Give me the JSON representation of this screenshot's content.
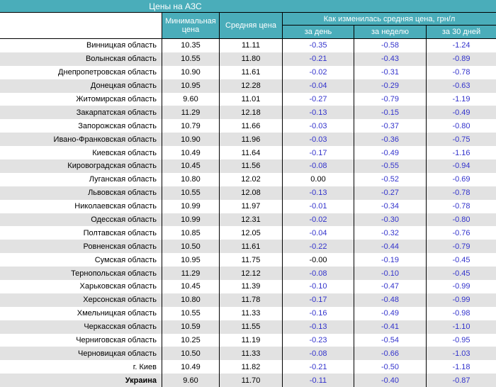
{
  "title": "Цены на АЗС",
  "header": {
    "min_price": "Минимальная цена",
    "avg_price": "Средняя цена",
    "change_group": "Как изменилась средняя цена, грн/л",
    "periods": [
      "за день",
      "за неделю",
      "за 30 дней"
    ]
  },
  "rows": [
    {
      "region": "Винницкая область",
      "min": "10.35",
      "avg": "11.11",
      "day": "-0.35",
      "week": "-0.58",
      "month": "-1.24"
    },
    {
      "region": "Волынская область",
      "min": "10.55",
      "avg": "11.80",
      "day": "-0.21",
      "week": "-0.43",
      "month": "-0.89"
    },
    {
      "region": "Днепропетровская область",
      "min": "10.90",
      "avg": "11.61",
      "day": "-0.02",
      "week": "-0.31",
      "month": "-0.78"
    },
    {
      "region": "Донецкая область",
      "min": "10.95",
      "avg": "12.28",
      "day": "-0.04",
      "week": "-0.29",
      "month": "-0.63"
    },
    {
      "region": "Житомирская область",
      "min": "9.60",
      "avg": "11.01",
      "day": "-0.27",
      "week": "-0.79",
      "month": "-1.19"
    },
    {
      "region": "Закарпатская область",
      "min": "11.29",
      "avg": "12.18",
      "day": "-0.13",
      "week": "-0.15",
      "month": "-0.49"
    },
    {
      "region": "Запорожская область",
      "min": "10.79",
      "avg": "11.66",
      "day": "-0.03",
      "week": "-0.37",
      "month": "-0.80"
    },
    {
      "region": "Ивано-Франковская область",
      "min": "10.90",
      "avg": "11.96",
      "day": "-0.03",
      "week": "-0.36",
      "month": "-0.75"
    },
    {
      "region": "Киевская область",
      "min": "10.49",
      "avg": "11.64",
      "day": "-0.17",
      "week": "-0.49",
      "month": "-1.16"
    },
    {
      "region": "Кировоградская область",
      "min": "10.45",
      "avg": "11.56",
      "day": "-0.08",
      "week": "-0.55",
      "month": "-0.94"
    },
    {
      "region": "Луганская область",
      "min": "10.80",
      "avg": "12.02",
      "day": "0.00",
      "week": "-0.52",
      "month": "-0.69"
    },
    {
      "region": "Львовская область",
      "min": "10.55",
      "avg": "12.08",
      "day": "-0.13",
      "week": "-0.27",
      "month": "-0.78"
    },
    {
      "region": "Николаевская область",
      "min": "10.99",
      "avg": "11.97",
      "day": "-0.01",
      "week": "-0.34",
      "month": "-0.78"
    },
    {
      "region": "Одесская область",
      "min": "10.99",
      "avg": "12.31",
      "day": "-0.02",
      "week": "-0.30",
      "month": "-0.80"
    },
    {
      "region": "Полтавская область",
      "min": "10.85",
      "avg": "12.05",
      "day": "-0.04",
      "week": "-0.32",
      "month": "-0.76"
    },
    {
      "region": "Ровненская область",
      "min": "10.50",
      "avg": "11.61",
      "day": "-0.22",
      "week": "-0.44",
      "month": "-0.79"
    },
    {
      "region": "Сумская область",
      "min": "10.95",
      "avg": "11.75",
      "day": "-0.00",
      "week": "-0.19",
      "month": "-0.45"
    },
    {
      "region": "Тернопольская область",
      "min": "11.29",
      "avg": "12.12",
      "day": "-0.08",
      "week": "-0.10",
      "month": "-0.45"
    },
    {
      "region": "Харьковская область",
      "min": "10.45",
      "avg": "11.39",
      "day": "-0.10",
      "week": "-0.47",
      "month": "-0.99"
    },
    {
      "region": "Херсонская область",
      "min": "10.80",
      "avg": "11.78",
      "day": "-0.17",
      "week": "-0.48",
      "month": "-0.99"
    },
    {
      "region": "Хмельницкая область",
      "min": "10.55",
      "avg": "11.33",
      "day": "-0.16",
      "week": "-0.49",
      "month": "-0.98"
    },
    {
      "region": "Черкасская область",
      "min": "10.59",
      "avg": "11.55",
      "day": "-0.13",
      "week": "-0.41",
      "month": "-1.10"
    },
    {
      "region": "Черниговская область",
      "min": "10.25",
      "avg": "11.19",
      "day": "-0.23",
      "week": "-0.54",
      "month": "-0.95"
    },
    {
      "region": "Черновицкая область",
      "min": "10.50",
      "avg": "11.33",
      "day": "-0.08",
      "week": "-0.66",
      "month": "-1.03"
    },
    {
      "region": "г. Киев",
      "min": "10.49",
      "avg": "11.82",
      "day": "-0.21",
      "week": "-0.50",
      "month": "-1.18"
    },
    {
      "region": "Украина",
      "total": true,
      "min": "9.60",
      "avg": "11.70",
      "day": "-0.11",
      "week": "-0.40",
      "month": "-0.87"
    }
  ],
  "colors": {
    "header_bg": "#4aadba",
    "alt_row_bg": "#e2e2e2",
    "change_value": "#3333cc"
  }
}
